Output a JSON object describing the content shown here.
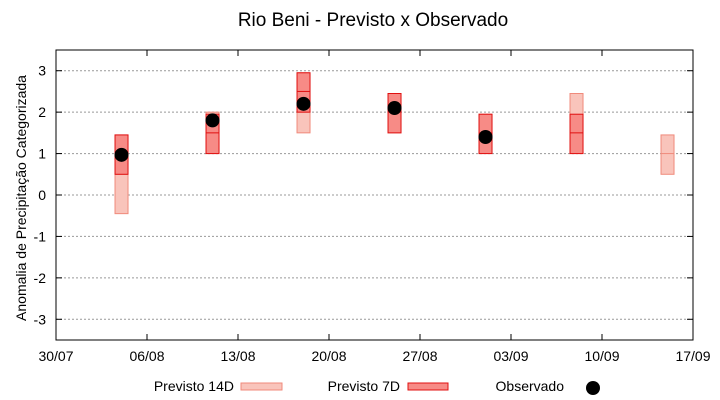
{
  "chart_data": {
    "type": "box-range",
    "title": "Rio Beni - Previsto x Observado",
    "ylabel": "Anomalia de Precipitação Categorizada",
    "xlabel": "",
    "ylim": [
      -3.5,
      3.5
    ],
    "y_ticks": [
      "3",
      "2",
      "1",
      "0",
      "-1",
      "-2",
      "-3"
    ],
    "y_tick_values": [
      3,
      2,
      1,
      0,
      -1,
      -2,
      -3
    ],
    "x_tick_labels": [
      "30/07",
      "06/08",
      "13/08",
      "20/08",
      "27/08",
      "03/09",
      "10/09",
      "17/09"
    ],
    "x_tick_positions": [
      0,
      1,
      2,
      3,
      4,
      5,
      6,
      7
    ],
    "x_range": [
      0,
      7
    ],
    "grid": true,
    "legend_position": "bottom",
    "colors": {
      "previsto14": "#f9c4bb",
      "previsto14_stroke": "#f08a7b",
      "previsto7": "#f78b86",
      "previsto7_stroke": "#e01010",
      "observado": "#000000",
      "grid": "#999999"
    },
    "series": [
      {
        "name": "Previsto 14D",
        "ranges": [
          {
            "x": 0.72,
            "low": -0.45,
            "high": 1.45,
            "mid": 0.5
          },
          {
            "x": 1.72,
            "low": 1.0,
            "high": 2.0,
            "mid": 1.5
          },
          {
            "x": 2.72,
            "low": 1.5,
            "high": 2.95,
            "mid": 2.0
          },
          {
            "x": 3.72,
            "low": 1.5,
            "high": 2.45,
            "mid": 2.0
          },
          {
            "x": 4.72,
            "low": 1.0,
            "high": 1.95,
            "mid": 1.5
          },
          {
            "x": 5.72,
            "low": 1.0,
            "high": 2.45,
            "mid": 1.5
          },
          {
            "x": 6.72,
            "low": 0.5,
            "high": 1.45,
            "mid": 1.0
          }
        ]
      },
      {
        "name": "Previsto 7D",
        "ranges": [
          {
            "x": 0.72,
            "low": 0.5,
            "high": 1.45,
            "mid": 1.0
          },
          {
            "x": 1.72,
            "low": 1.0,
            "high": 1.95,
            "mid": 1.5
          },
          {
            "x": 2.72,
            "low": 2.0,
            "high": 2.95,
            "mid": 2.5
          },
          {
            "x": 3.72,
            "low": 1.5,
            "high": 2.45,
            "mid": 2.0
          },
          {
            "x": 4.72,
            "low": 1.0,
            "high": 1.95,
            "mid": 1.5
          },
          {
            "x": 5.72,
            "low": 1.0,
            "high": 1.95,
            "mid": 1.5
          }
        ]
      },
      {
        "name": "Observado",
        "points": [
          {
            "x": 0.72,
            "y": 0.97
          },
          {
            "x": 1.72,
            "y": 1.8
          },
          {
            "x": 2.72,
            "y": 2.2
          },
          {
            "x": 3.72,
            "y": 2.1
          },
          {
            "x": 4.72,
            "y": 1.4
          }
        ]
      }
    ]
  }
}
